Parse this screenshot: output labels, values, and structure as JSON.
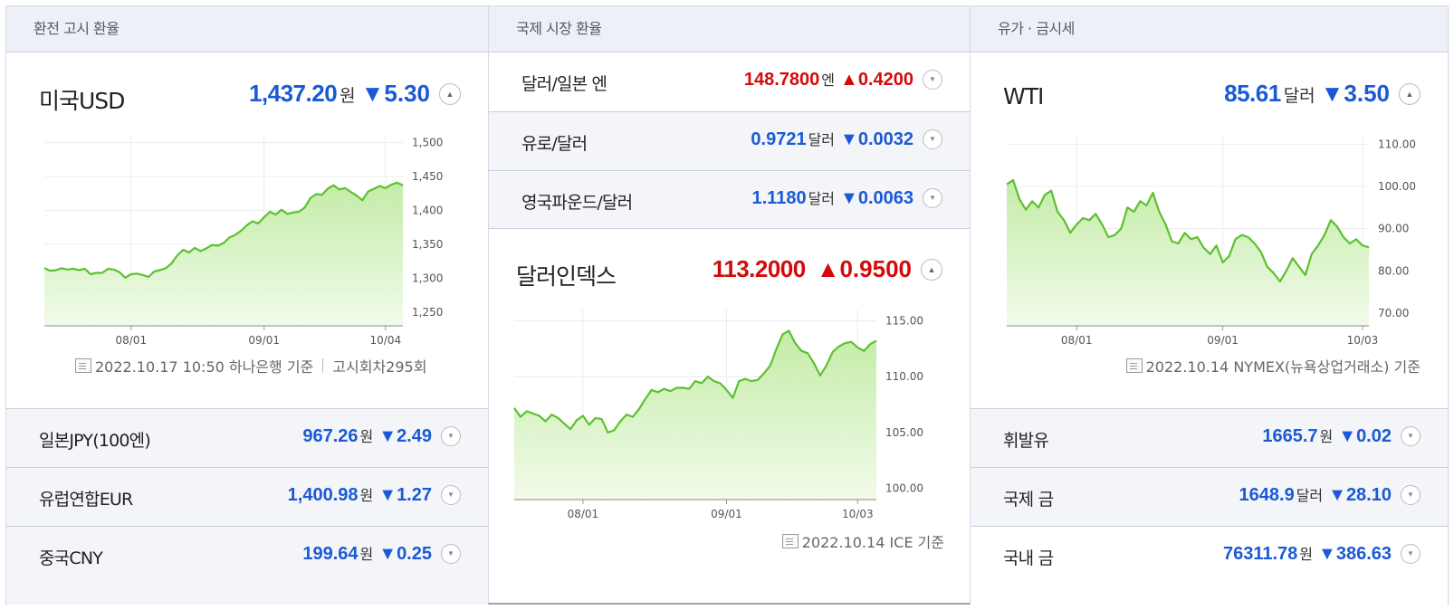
{
  "colors": {
    "up": "#d40a0a",
    "down": "#1a5ad6",
    "line": "#5cc12e",
    "fill_top": "#c3eca7",
    "fill_bottom": "#f2fbea"
  },
  "col1": {
    "header": "환전 고시 환율",
    "main": {
      "name": "미국USD",
      "price": "1,437.20",
      "unit": "원",
      "arrow": "▼",
      "change": "5.30",
      "direction": "down",
      "toggle_icon": "chevron-up-icon"
    },
    "source": {
      "text": "2022.10.17 10:50 하나은행 기준",
      "extra": "고시회차295회"
    },
    "rows": [
      {
        "name": "일본JPY(100엔)",
        "price": "967.26",
        "unit": "원",
        "arrow": "▼",
        "change": "2.49",
        "direction": "down"
      },
      {
        "name": "유럽연합EUR",
        "price": "1,400.98",
        "unit": "원",
        "arrow": "▼",
        "change": "1.27",
        "direction": "down"
      },
      {
        "name": "중국CNY",
        "price": "199.64",
        "unit": "원",
        "arrow": "▼",
        "change": "0.25",
        "direction": "down"
      }
    ]
  },
  "col2": {
    "header": "국제 시장 환율",
    "rows": [
      {
        "name": "달러/일본 엔",
        "price": "148.7800",
        "unit": "엔",
        "arrow": "▲",
        "change": "0.4200",
        "direction": "up"
      },
      {
        "name": "유로/달러",
        "price": "0.9721",
        "unit": "달러",
        "arrow": "▼",
        "change": "0.0032",
        "direction": "down"
      },
      {
        "name": "영국파운드/달러",
        "price": "1.1180",
        "unit": "달러",
        "arrow": "▼",
        "change": "0.0063",
        "direction": "down"
      }
    ],
    "main": {
      "name": "달러인덱스",
      "price": "113.2000",
      "arrow": "▲",
      "change": "0.9500",
      "direction": "up",
      "toggle_icon": "chevron-up-icon"
    },
    "source": {
      "text": "2022.10.14 ICE 기준"
    }
  },
  "col3": {
    "header": "유가 · 금시세",
    "main": {
      "name": "WTI",
      "price": "85.61",
      "unit": "달러",
      "arrow": "▼",
      "change": "3.50",
      "direction": "down",
      "toggle_icon": "chevron-up-icon"
    },
    "source": {
      "text": "2022.10.14 NYMEX(뉴욕상업거래소) 기준"
    },
    "rows": [
      {
        "name": "휘발유",
        "price": "1665.7",
        "unit": "원",
        "arrow": "▼",
        "change": "0.02",
        "direction": "down"
      },
      {
        "name": "국제 금",
        "price": "1648.9",
        "unit": "달러",
        "arrow": "▼",
        "change": "28.10",
        "direction": "down"
      },
      {
        "name": "국내 금",
        "price": "76311.78",
        "unit": "원",
        "arrow": "▼",
        "change": "386.63",
        "direction": "down"
      }
    ]
  },
  "chart_data": [
    {
      "type": "area",
      "name": "usd",
      "ylim": [
        1230,
        1510
      ],
      "yticks": [
        1250,
        1300,
        1350,
        1400,
        1450,
        1500
      ],
      "ytick_labels": [
        "1,250",
        "1,300",
        "1,350",
        "1,400",
        "1,450",
        "1,500"
      ],
      "xticks": [
        {
          "i": 15,
          "label": "08/01"
        },
        {
          "i": 38,
          "label": "09/01"
        },
        {
          "i": 59,
          "label": "10/04"
        }
      ],
      "values": [
        1315,
        1311,
        1312,
        1315,
        1313,
        1314,
        1312,
        1314,
        1306,
        1308,
        1308,
        1314,
        1313,
        1309,
        1301,
        1306,
        1307,
        1305,
        1302,
        1310,
        1312,
        1315,
        1322,
        1334,
        1342,
        1338,
        1345,
        1340,
        1344,
        1349,
        1348,
        1352,
        1360,
        1364,
        1370,
        1378,
        1384,
        1381,
        1390,
        1398,
        1394,
        1401,
        1395,
        1397,
        1398,
        1404,
        1418,
        1424,
        1423,
        1432,
        1437,
        1431,
        1433,
        1427,
        1422,
        1415,
        1428,
        1432,
        1436,
        1433,
        1438,
        1441,
        1437
      ]
    },
    {
      "type": "area",
      "name": "dollar-index",
      "ylim": [
        99,
        116
      ],
      "yticks": [
        100,
        105,
        110,
        115
      ],
      "ytick_labels": [
        "100.00",
        "105.00",
        "110.00",
        "115.00"
      ],
      "xticks": [
        {
          "i": 11,
          "label": "08/01"
        },
        {
          "i": 34,
          "label": "09/01"
        },
        {
          "i": 55,
          "label": "10/03"
        }
      ],
      "values": [
        107.2,
        106.4,
        106.9,
        106.7,
        106.5,
        106.0,
        106.6,
        106.3,
        105.8,
        105.3,
        106.1,
        106.5,
        105.7,
        106.3,
        106.2,
        105.0,
        105.2,
        106.0,
        106.6,
        106.4,
        107.1,
        108.0,
        108.8,
        108.6,
        108.9,
        108.7,
        109.0,
        109.0,
        108.9,
        109.6,
        109.4,
        110.0,
        109.6,
        109.4,
        108.8,
        108.1,
        109.6,
        109.8,
        109.6,
        109.7,
        110.3,
        111.0,
        112.5,
        113.8,
        114.1,
        113.0,
        112.3,
        112.1,
        111.2,
        110.1,
        111.0,
        112.2,
        112.7,
        113.0,
        113.1,
        112.6,
        112.3,
        112.9,
        113.2
      ]
    },
    {
      "type": "area",
      "name": "wti",
      "ylim": [
        67,
        112
      ],
      "yticks": [
        70,
        80,
        90,
        100,
        110
      ],
      "ytick_labels": [
        "70.00",
        "80.00",
        "90.00",
        "100.00",
        "110.00"
      ],
      "xticks": [
        {
          "i": 11,
          "label": "08/01"
        },
        {
          "i": 34,
          "label": "09/01"
        },
        {
          "i": 56,
          "label": "10/03"
        }
      ],
      "values": [
        100.5,
        101.5,
        97.0,
        94.5,
        96.5,
        95.0,
        98.0,
        99.0,
        94.0,
        92.0,
        89.0,
        91.0,
        92.5,
        92.0,
        93.5,
        91.0,
        88.0,
        88.5,
        90.0,
        95.0,
        94.0,
        96.5,
        95.5,
        98.5,
        94.0,
        91.0,
        87.0,
        86.5,
        89.0,
        87.5,
        88.0,
        85.5,
        84.0,
        86.0,
        82.0,
        83.5,
        87.5,
        88.5,
        88.0,
        86.5,
        84.5,
        81.0,
        79.5,
        77.5,
        80.0,
        83.0,
        81.0,
        79.0,
        84.0,
        86.0,
        88.5,
        92.0,
        90.5,
        88.0,
        86.5,
        87.5,
        86.0,
        85.61
      ]
    }
  ]
}
